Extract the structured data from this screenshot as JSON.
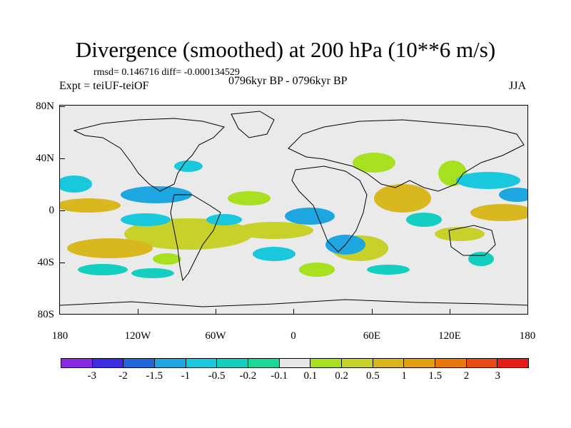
{
  "title": "Divergence (smoothed) at 200 hPa (10**6 m/s)",
  "stats": "rmsd= 0.146716 diff= -0.000134529",
  "expt": "Expt = teiUF-teiOF",
  "period": "0796kyr BP - 0796kyr BP",
  "season": "JJA",
  "lat_labels": [
    "80N",
    "40N",
    "0",
    "40S",
    "80S"
  ],
  "lon_labels": [
    "180",
    "120W",
    "60W",
    "0",
    "60E",
    "120E",
    "180"
  ],
  "colorbar": {
    "labels": [
      "-3",
      "-2",
      "-1.5",
      "-1",
      "-0.5",
      "-0.2",
      "-0.1",
      "0.1",
      "0.2",
      "0.5",
      "1",
      "1.5",
      "2",
      "3"
    ],
    "colors": [
      "#8a2be2",
      "#3c2ee0",
      "#1f66d9",
      "#1da6e0",
      "#19c8dc",
      "#14cfc0",
      "#19d898",
      "#e6e6e6",
      "#a6e01f",
      "#c8d02a",
      "#d8b81e",
      "#e0a010",
      "#e8780e",
      "#e84a14",
      "#e81c14"
    ]
  }
}
